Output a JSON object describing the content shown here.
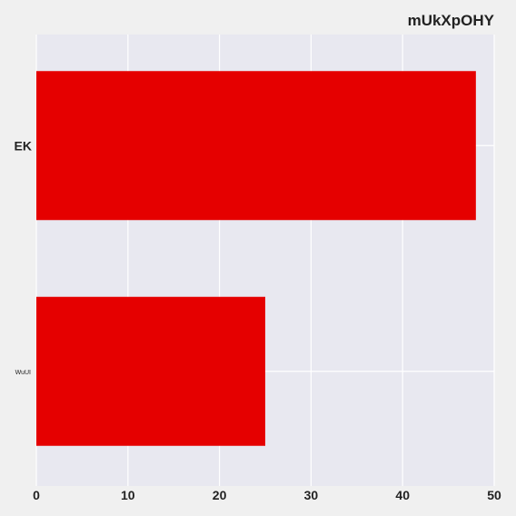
{
  "chart_data": {
    "type": "bar",
    "orientation": "horizontal",
    "title": "mUkXpOHY",
    "xlabel": "",
    "ylabel": "",
    "categories": [
      "EK",
      "WuUI"
    ],
    "values": [
      48,
      25
    ],
    "xlim": [
      0,
      50
    ],
    "xticks": [
      0,
      10,
      20,
      30,
      40,
      50
    ],
    "grid": true,
    "bar_color": "#e50000",
    "plot_background": "#e8e8f0",
    "figure_background": "#f0f0f0"
  }
}
